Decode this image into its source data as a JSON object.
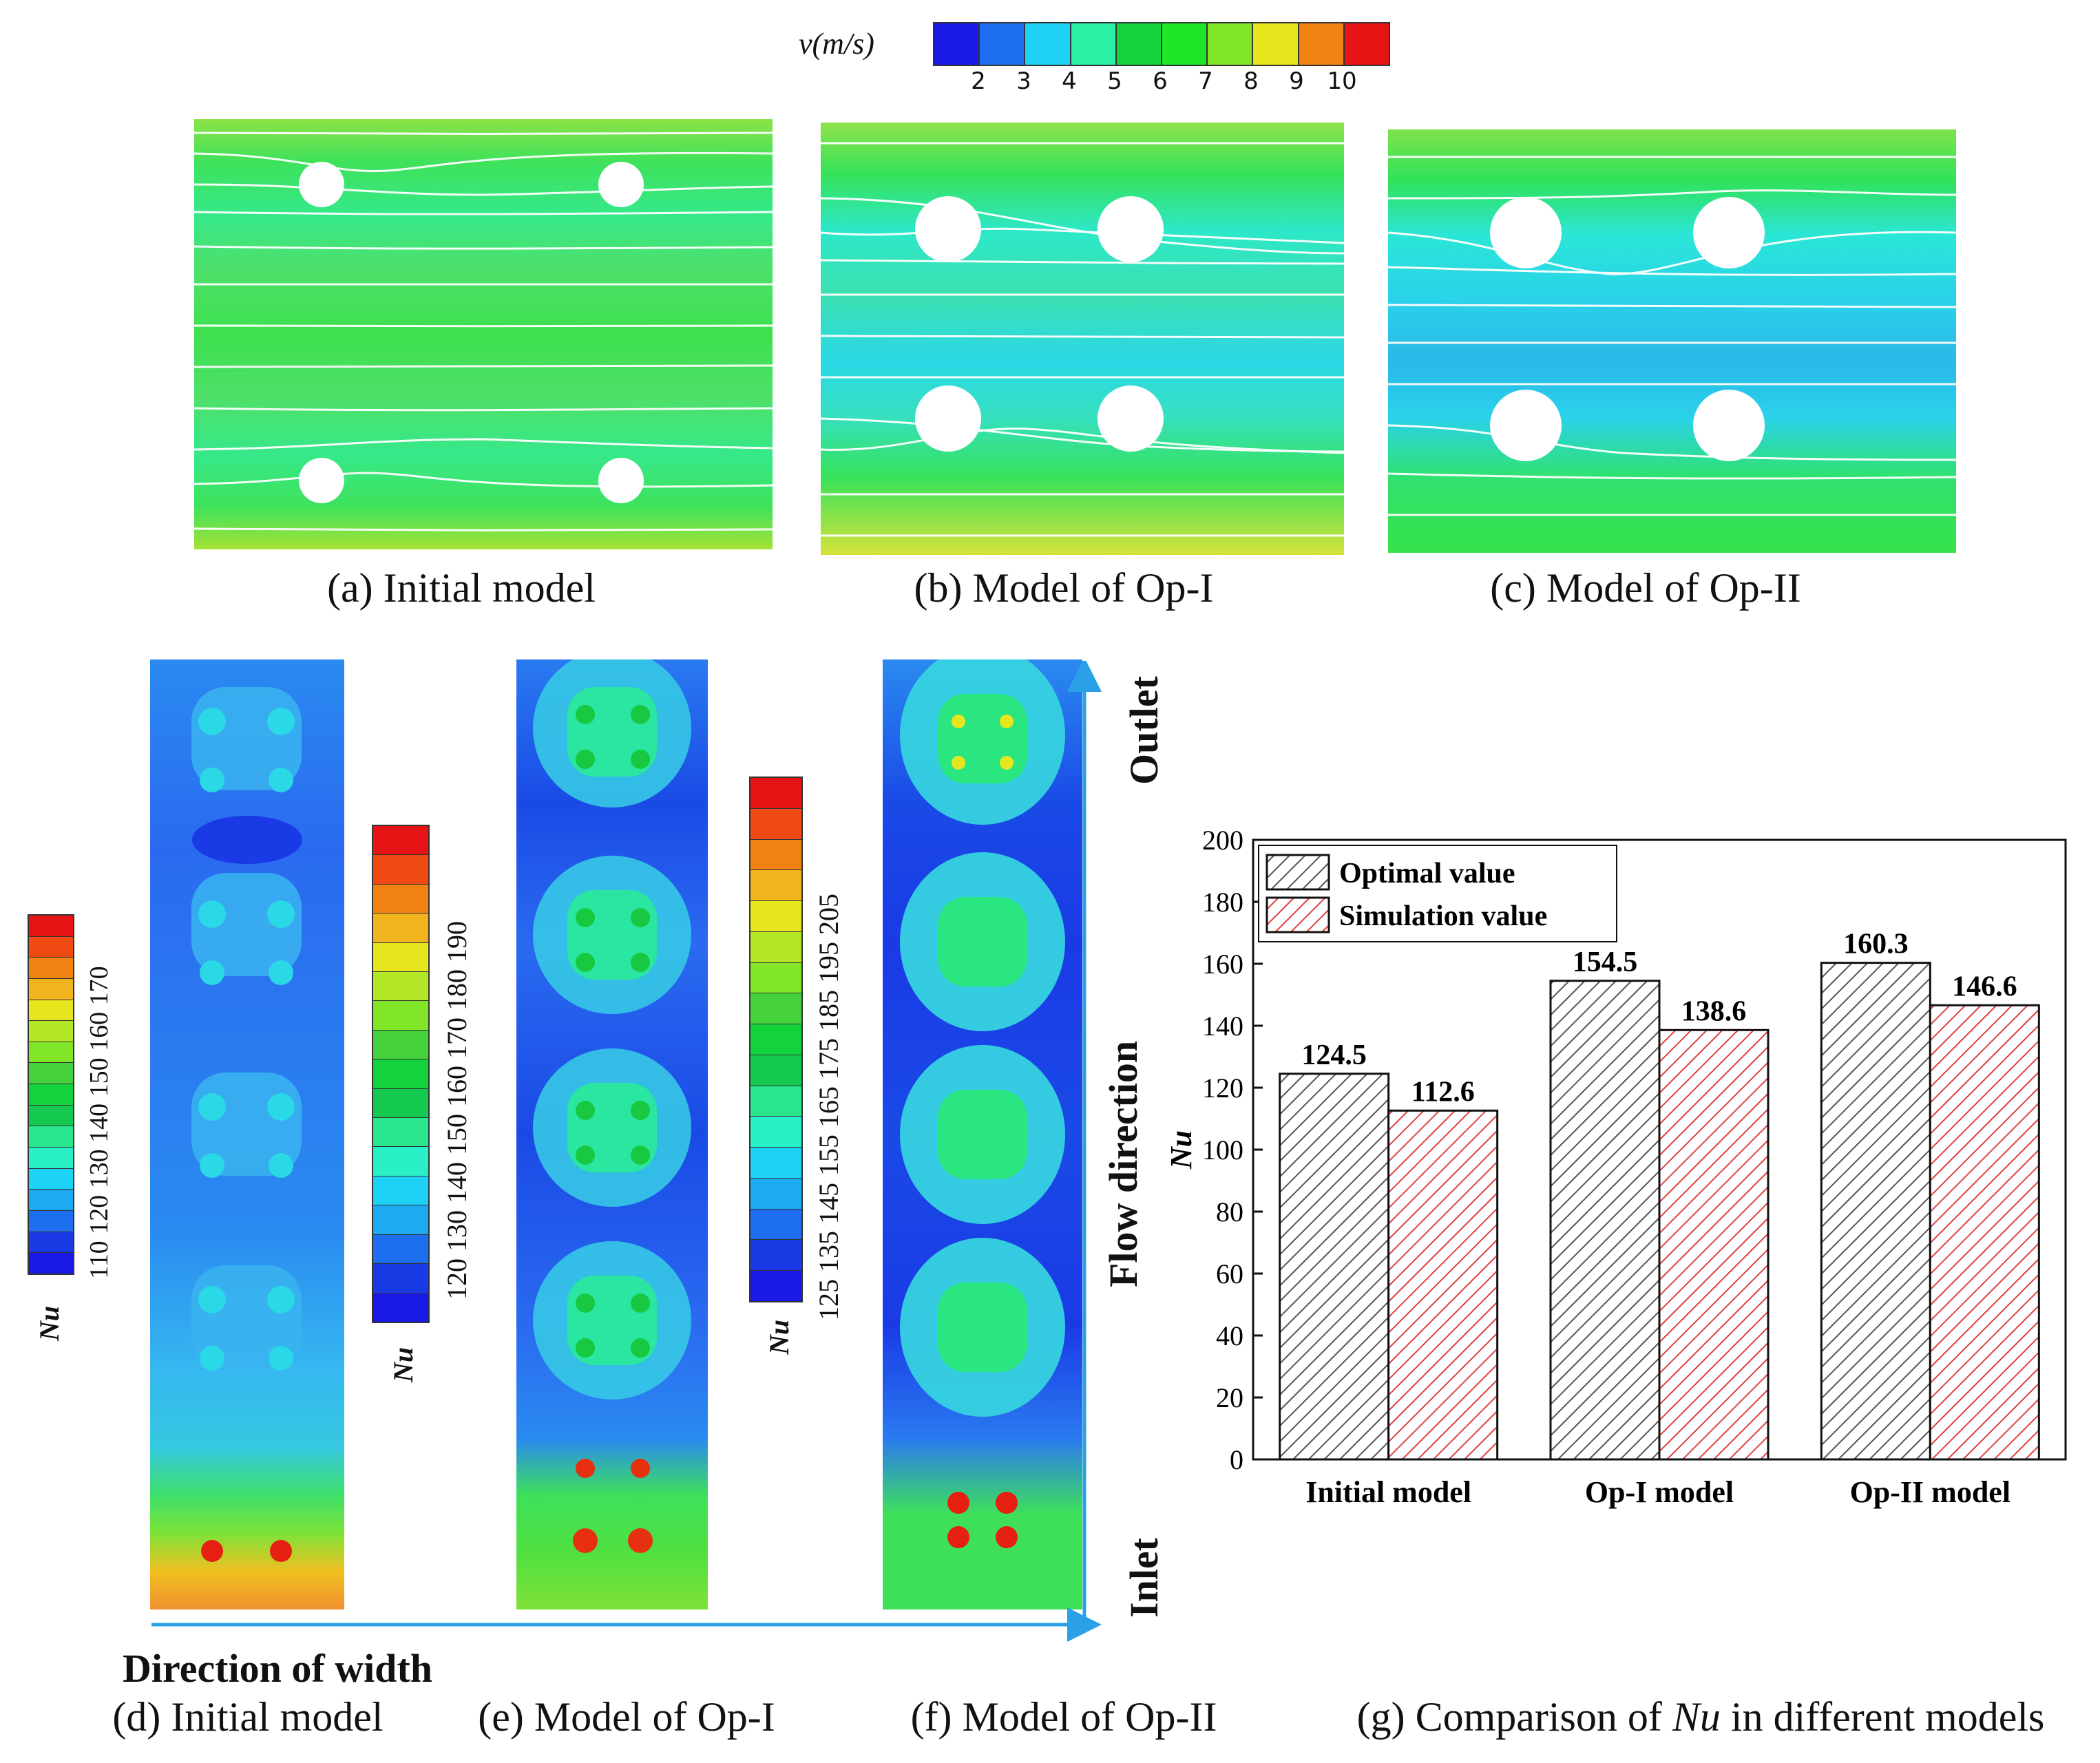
{
  "velocity_legend": {
    "title": "v(m/s)",
    "ticks": [
      "2",
      "3",
      "4",
      "5",
      "6",
      "7",
      "8",
      "9",
      "10"
    ],
    "colors": [
      "#1a1ae6",
      "#1e6ef0",
      "#1ed2f5",
      "#2af0a6",
      "#14d23c",
      "#1ee628",
      "#82e628",
      "#e6e61e",
      "#f08214",
      "#e61414"
    ]
  },
  "panels_top": [
    {
      "caption": "(a) Initial model"
    },
    {
      "caption": "(b) Model of Op-I"
    },
    {
      "caption": "(c) Model of Op-II"
    }
  ],
  "nu_legends": [
    {
      "label": "Nu",
      "ticks": "110 120 130 140 150 160 170"
    },
    {
      "label": "Nu",
      "ticks": "120 130 140 150 160 170 180 190"
    },
    {
      "label": "Nu",
      "ticks": "125 135 145 155 165 175 185 195 205"
    }
  ],
  "panels_bottom": [
    {
      "caption": "(d) Initial model"
    },
    {
      "caption": "(e) Model of Op-I"
    },
    {
      "caption": "(f) Model of Op-II"
    }
  ],
  "axis_labels": {
    "width": "Direction of width",
    "flow": "Flow direction",
    "outlet": "Outlet",
    "inlet": "Inlet"
  },
  "chart_data": {
    "type": "bar",
    "caption_prefix": "(g) Comparison of ",
    "caption_italic": "Nu",
    "caption_suffix": " in different models",
    "categories": [
      "Initial model",
      "Op-I model",
      "Op-II model"
    ],
    "series": [
      {
        "name": "Optimal value",
        "values": [
          124.5,
          154.5,
          160.3
        ],
        "color": "#555555"
      },
      {
        "name": "Simulation value",
        "values": [
          112.6,
          138.6,
          146.6
        ],
        "color": "#e04040"
      }
    ],
    "data_labels": [
      [
        "124.5",
        "154.5",
        "160.3"
      ],
      [
        "112.6",
        "138.6",
        "146.6"
      ]
    ],
    "ylabel": "Nu",
    "ylim": [
      0,
      200
    ],
    "yticks": [
      0,
      20,
      40,
      60,
      80,
      100,
      120,
      140,
      160,
      180,
      200
    ],
    "legend_position": "top-left"
  }
}
